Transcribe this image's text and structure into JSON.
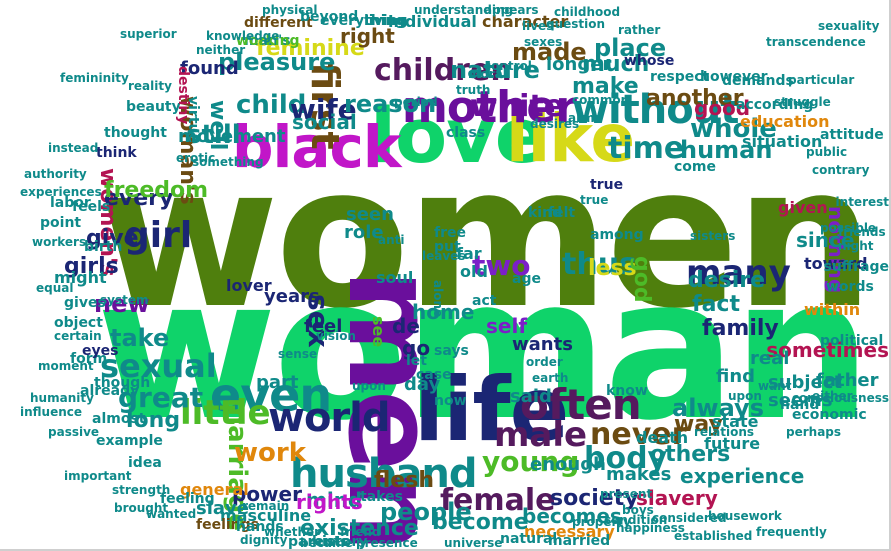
{
  "colors": {
    "olive": "#4f7f0d",
    "green": "#0fd36a",
    "purple": "#6a0f9c",
    "magenta": "#c116c8",
    "yellow": "#d6d918",
    "navy": "#1b2674",
    "teal": "#0f8a8a",
    "brown": "#6b4b12",
    "darkpurple": "#551a5e",
    "orange": "#e0870c",
    "violet": "#7b1fc8",
    "lime": "#4dbb27",
    "slate": "#455878",
    "crimson": "#b31452",
    "black": "#222222"
  },
  "words": [
    {
      "text": "women",
      "color": "olive"
    },
    {
      "text": "woman",
      "color": "green"
    },
    {
      "text": "men",
      "color": "purple"
    },
    {
      "text": "love",
      "color": "green"
    },
    {
      "text": "like",
      "color": "yellow"
    },
    {
      "text": "black",
      "color": "magenta"
    },
    {
      "text": "life",
      "color": "navy"
    },
    {
      "text": "mother",
      "color": "purple"
    },
    {
      "text": "without",
      "color": "teal"
    },
    {
      "text": "children",
      "color": "darkpurple"
    },
    {
      "text": "even",
      "color": "teal"
    },
    {
      "text": "often",
      "color": "darkpurple"
    },
    {
      "text": "world",
      "color": "navy"
    },
    {
      "text": "many",
      "color": "navy"
    },
    {
      "text": "husband",
      "color": "teal"
    },
    {
      "text": "male",
      "color": "darkpurple"
    },
    {
      "text": "young",
      "color": "lime"
    },
    {
      "text": "never",
      "color": "brown"
    },
    {
      "text": "girl",
      "color": "navy"
    },
    {
      "text": "first",
      "color": "brown"
    },
    {
      "text": "white",
      "color": "purple"
    },
    {
      "text": "little",
      "color": "lime"
    },
    {
      "text": "marriage",
      "color": "lime"
    },
    {
      "text": "sexual",
      "color": "teal"
    },
    {
      "text": "body",
      "color": "teal"
    },
    {
      "text": "female",
      "color": "darkpurple"
    },
    {
      "text": "time",
      "color": "teal"
    },
    {
      "text": "two",
      "color": "violet"
    },
    {
      "text": "thus",
      "color": "teal"
    },
    {
      "text": "always",
      "color": "teal"
    },
    {
      "text": "work",
      "color": "orange"
    },
    {
      "text": "great",
      "color": "teal"
    },
    {
      "text": "child",
      "color": "teal"
    },
    {
      "text": "still",
      "color": "teal"
    },
    {
      "text": "wife",
      "color": "navy"
    },
    {
      "text": "nature",
      "color": "teal"
    },
    {
      "text": "reason",
      "color": "teal"
    },
    {
      "text": "whole",
      "color": "teal"
    },
    {
      "text": "human",
      "color": "teal"
    },
    {
      "text": "society",
      "color": "navy"
    },
    {
      "text": "people",
      "color": "teal"
    },
    {
      "text": "become",
      "color": "teal"
    },
    {
      "text": "sex",
      "color": "navy"
    },
    {
      "text": "women's",
      "color": "crimson"
    },
    {
      "text": "woman's",
      "color": "brown"
    },
    {
      "text": "pleasure",
      "color": "teal"
    },
    {
      "text": "feminine",
      "color": "yellow"
    },
    {
      "text": "made",
      "color": "brown"
    },
    {
      "text": "much",
      "color": "teal"
    },
    {
      "text": "make",
      "color": "teal"
    },
    {
      "text": "well",
      "color": "teal"
    },
    {
      "text": "place",
      "color": "teal"
    },
    {
      "text": "another",
      "color": "brown"
    },
    {
      "text": "desire",
      "color": "teal"
    },
    {
      "text": "fact",
      "color": "teal"
    },
    {
      "text": "family",
      "color": "navy"
    },
    {
      "text": "new",
      "color": "purple"
    },
    {
      "text": "take",
      "color": "teal"
    },
    {
      "text": "every",
      "color": "navy"
    },
    {
      "text": "give",
      "color": "navy"
    },
    {
      "text": "girls",
      "color": "navy"
    },
    {
      "text": "freedom",
      "color": "lime"
    },
    {
      "text": "long",
      "color": "teal"
    },
    {
      "text": "mind",
      "color": "teal"
    },
    {
      "text": "flesh",
      "color": "brown"
    },
    {
      "text": "rights",
      "color": "magenta"
    },
    {
      "text": "power",
      "color": "navy"
    },
    {
      "text": "existence",
      "color": "teal"
    },
    {
      "text": "others",
      "color": "teal"
    },
    {
      "text": "experience",
      "color": "teal"
    },
    {
      "text": "sometimes",
      "color": "crimson"
    },
    {
      "text": "way",
      "color": "brown"
    },
    {
      "text": "less",
      "color": "yellow"
    },
    {
      "text": "home",
      "color": "teal"
    },
    {
      "text": "god",
      "color": "lime"
    },
    {
      "text": "nothing",
      "color": "violet"
    },
    {
      "text": "since",
      "color": "teal"
    },
    {
      "text": "good",
      "color": "crimson"
    },
    {
      "text": "social",
      "color": "teal"
    },
    {
      "text": "found",
      "color": "navy"
    },
    {
      "text": "right",
      "color": "brown"
    },
    {
      "text": "longer",
      "color": "teal"
    },
    {
      "text": "movement",
      "color": "teal"
    },
    {
      "text": "years",
      "color": "navy"
    },
    {
      "text": "role",
      "color": "teal"
    },
    {
      "text": "seen",
      "color": "teal"
    },
    {
      "text": "self",
      "color": "violet"
    },
    {
      "text": "said",
      "color": "teal"
    },
    {
      "text": "day",
      "color": "teal"
    },
    {
      "text": "de",
      "color": "navy"
    },
    {
      "text": "go",
      "color": "navy"
    },
    {
      "text": "feel",
      "color": "navy"
    },
    {
      "text": "part",
      "color": "teal"
    },
    {
      "text": "slave",
      "color": "teal"
    },
    {
      "text": "slavery",
      "color": "crimson"
    },
    {
      "text": "becomes",
      "color": "teal"
    },
    {
      "text": "enough",
      "color": "teal"
    },
    {
      "text": "makes",
      "color": "teal"
    },
    {
      "text": "wants",
      "color": "navy"
    },
    {
      "text": "subject",
      "color": "teal"
    },
    {
      "text": "father",
      "color": "teal"
    },
    {
      "text": "real",
      "color": "teal"
    },
    {
      "text": "find",
      "color": "teal"
    },
    {
      "text": "seems",
      "color": "teal"
    },
    {
      "text": "man's",
      "color": "teal"
    },
    {
      "text": "working",
      "color": "lime"
    },
    {
      "text": "different",
      "color": "brown"
    },
    {
      "text": "beyond",
      "color": "teal"
    },
    {
      "text": "everything",
      "color": "teal"
    },
    {
      "text": "living",
      "color": "teal"
    },
    {
      "text": "individual",
      "color": "teal"
    },
    {
      "text": "character",
      "color": "brown"
    },
    {
      "text": "however",
      "color": "teal"
    },
    {
      "text": "respect",
      "color": "teal"
    },
    {
      "text": "whose",
      "color": "navy"
    },
    {
      "text": "education",
      "color": "orange"
    },
    {
      "text": "according",
      "color": "teal"
    },
    {
      "text": "situation",
      "color": "teal"
    },
    {
      "text": "attitude",
      "color": "teal"
    },
    {
      "text": "given",
      "color": "crimson"
    },
    {
      "text": "toward",
      "color": "navy"
    },
    {
      "text": "within",
      "color": "orange"
    },
    {
      "text": "words",
      "color": "teal"
    },
    {
      "text": "political",
      "color": "teal"
    },
    {
      "text": "economic",
      "color": "teal"
    },
    {
      "text": "state",
      "color": "teal"
    },
    {
      "text": "hand",
      "color": "teal"
    },
    {
      "text": "future",
      "color": "teal"
    },
    {
      "text": "death",
      "color": "teal"
    },
    {
      "text": "necessary",
      "color": "orange"
    },
    {
      "text": "natural",
      "color": "teal"
    },
    {
      "text": "married",
      "color": "teal"
    },
    {
      "text": "masculine",
      "color": "teal"
    },
    {
      "text": "feelings",
      "color": "brown"
    },
    {
      "text": "hands",
      "color": "teal"
    },
    {
      "text": "history",
      "color": "teal"
    },
    {
      "text": "parents",
      "color": "teal"
    },
    {
      "text": "became",
      "color": "teal"
    },
    {
      "text": "presence",
      "color": "teal"
    },
    {
      "text": "general",
      "color": "orange"
    },
    {
      "text": "feeling",
      "color": "teal"
    },
    {
      "text": "idea",
      "color": "teal"
    },
    {
      "text": "example",
      "color": "teal"
    },
    {
      "text": "almost",
      "color": "teal"
    },
    {
      "text": "already",
      "color": "teal"
    },
    {
      "text": "though",
      "color": "teal"
    },
    {
      "text": "form",
      "color": "teal"
    },
    {
      "text": "object",
      "color": "teal"
    },
    {
      "text": "might",
      "color": "teal"
    },
    {
      "text": "eyes",
      "color": "navy"
    },
    {
      "text": "birth",
      "color": "teal"
    },
    {
      "text": "lover",
      "color": "navy"
    },
    {
      "text": "virtue",
      "color": "teal"
    },
    {
      "text": "beauty",
      "color": "teal"
    },
    {
      "text": "destiny",
      "color": "crimson"
    },
    {
      "text": "think",
      "color": "navy"
    },
    {
      "text": "thought",
      "color": "teal"
    },
    {
      "text": "feels",
      "color": "teal"
    },
    {
      "text": "point",
      "color": "teal"
    },
    {
      "text": "labor",
      "color": "teal"
    },
    {
      "text": "old",
      "color": "teal"
    },
    {
      "text": "far",
      "color": "teal"
    },
    {
      "text": "soul",
      "color": "teal"
    },
    {
      "text": "among",
      "color": "teal"
    },
    {
      "text": "age",
      "color": "teal"
    },
    {
      "text": "free",
      "color": "teal"
    },
    {
      "text": "kind",
      "color": "teal"
    },
    {
      "text": "felt",
      "color": "teal"
    },
    {
      "text": "true",
      "color": "navy"
    },
    {
      "text": "act",
      "color": "teal"
    },
    {
      "text": "put",
      "color": "teal"
    },
    {
      "text": "case",
      "color": "teal"
    },
    {
      "text": "know",
      "color": "teal"
    },
    {
      "text": "now",
      "color": "teal"
    },
    {
      "text": "let",
      "color": "teal"
    },
    {
      "text": "says",
      "color": "teal"
    },
    {
      "text": "come",
      "color": "teal"
    },
    {
      "text": "class",
      "color": "teal"
    },
    {
      "text": "demands",
      "color": "teal"
    },
    {
      "text": "suffrage",
      "color": "teal"
    },
    {
      "text": "night",
      "color": "teal"
    },
    {
      "text": "want",
      "color": "teal"
    },
    {
      "text": "takes",
      "color": "teal"
    },
    {
      "text": "see",
      "color": "lime"
    },
    {
      "text": "vision",
      "color": "teal"
    },
    {
      "text": "possible",
      "color": "teal"
    },
    {
      "text": "either",
      "color": "teal"
    },
    {
      "text": "upon",
      "color": "teal"
    },
    {
      "text": "true",
      "color": "teal"
    },
    {
      "text": "truth",
      "color": "teal"
    },
    {
      "text": "order",
      "color": "teal"
    },
    {
      "text": "alone",
      "color": "teal"
    },
    {
      "text": "earth",
      "color": "teal"
    },
    {
      "text": "gives",
      "color": "teal"
    },
    {
      "text": "certain",
      "color": "teal"
    },
    {
      "text": "upon",
      "color": "teal"
    },
    {
      "text": "sense",
      "color": "teal"
    },
    {
      "text": "important",
      "color": "teal"
    },
    {
      "text": "wanted",
      "color": "teal"
    },
    {
      "text": "happiness",
      "color": "teal"
    },
    {
      "text": "property",
      "color": "teal"
    },
    {
      "text": "condition",
      "color": "teal"
    },
    {
      "text": "considered",
      "color": "teal"
    },
    {
      "text": "present",
      "color": "teal"
    },
    {
      "text": "boys",
      "color": "teal"
    },
    {
      "text": "remain",
      "color": "teal"
    },
    {
      "text": "brought",
      "color": "teal"
    },
    {
      "text": "strength",
      "color": "teal"
    },
    {
      "text": "whether",
      "color": "teal"
    },
    {
      "text": "friend",
      "color": "teal"
    },
    {
      "text": "dignity",
      "color": "teal"
    },
    {
      "text": "workers",
      "color": "teal"
    },
    {
      "text": "equal",
      "color": "teal"
    },
    {
      "text": "authority",
      "color": "teal"
    },
    {
      "text": "experiences",
      "color": "teal"
    },
    {
      "text": "physical",
      "color": "teal"
    },
    {
      "text": "understanding",
      "color": "teal"
    },
    {
      "text": "childhood",
      "color": "teal"
    },
    {
      "text": "question",
      "color": "teal"
    },
    {
      "text": "lives",
      "color": "teal"
    },
    {
      "text": "rather",
      "color": "teal"
    },
    {
      "text": "sexes",
      "color": "teal"
    },
    {
      "text": "reality",
      "color": "teal"
    },
    {
      "text": "superior",
      "color": "teal"
    },
    {
      "text": "knowledge",
      "color": "teal"
    },
    {
      "text": "neither",
      "color": "teal"
    },
    {
      "text": "appears",
      "color": "teal"
    },
    {
      "text": "sexuality",
      "color": "teal"
    },
    {
      "text": "transcendence",
      "color": "teal"
    },
    {
      "text": "struggle",
      "color": "teal"
    },
    {
      "text": "public",
      "color": "teal"
    },
    {
      "text": "contrary",
      "color": "teal"
    },
    {
      "text": "interest",
      "color": "teal"
    },
    {
      "text": "friends",
      "color": "teal"
    },
    {
      "text": "particular",
      "color": "teal"
    },
    {
      "text": "common",
      "color": "teal"
    },
    {
      "text": "arms",
      "color": "teal"
    },
    {
      "text": "desires",
      "color": "teal"
    },
    {
      "text": "moral",
      "color": "teal"
    },
    {
      "text": "period",
      "color": "teal"
    },
    {
      "text": "control",
      "color": "teal"
    },
    {
      "text": "anti",
      "color": "teal"
    },
    {
      "text": "leaves",
      "color": "teal"
    },
    {
      "text": "sisters",
      "color": "teal"
    },
    {
      "text": "passive",
      "color": "teal"
    },
    {
      "text": "humanity",
      "color": "teal"
    },
    {
      "text": "influence",
      "color": "teal"
    },
    {
      "text": "instead",
      "color": "teal"
    },
    {
      "text": "erotic",
      "color": "teal"
    },
    {
      "text": "something",
      "color": "teal"
    },
    {
      "text": "femininity",
      "color": "teal"
    },
    {
      "text": "moment",
      "color": "teal"
    },
    {
      "text": "system",
      "color": "teal"
    },
    {
      "text": "relations",
      "color": "teal"
    },
    {
      "text": "consciousness",
      "color": "teal"
    },
    {
      "text": "housework",
      "color": "teal"
    },
    {
      "text": "established",
      "color": "teal"
    },
    {
      "text": "universe",
      "color": "teal"
    },
    {
      "text": "perhaps",
      "color": "teal"
    },
    {
      "text": "frequently",
      "color": "teal"
    }
  ]
}
